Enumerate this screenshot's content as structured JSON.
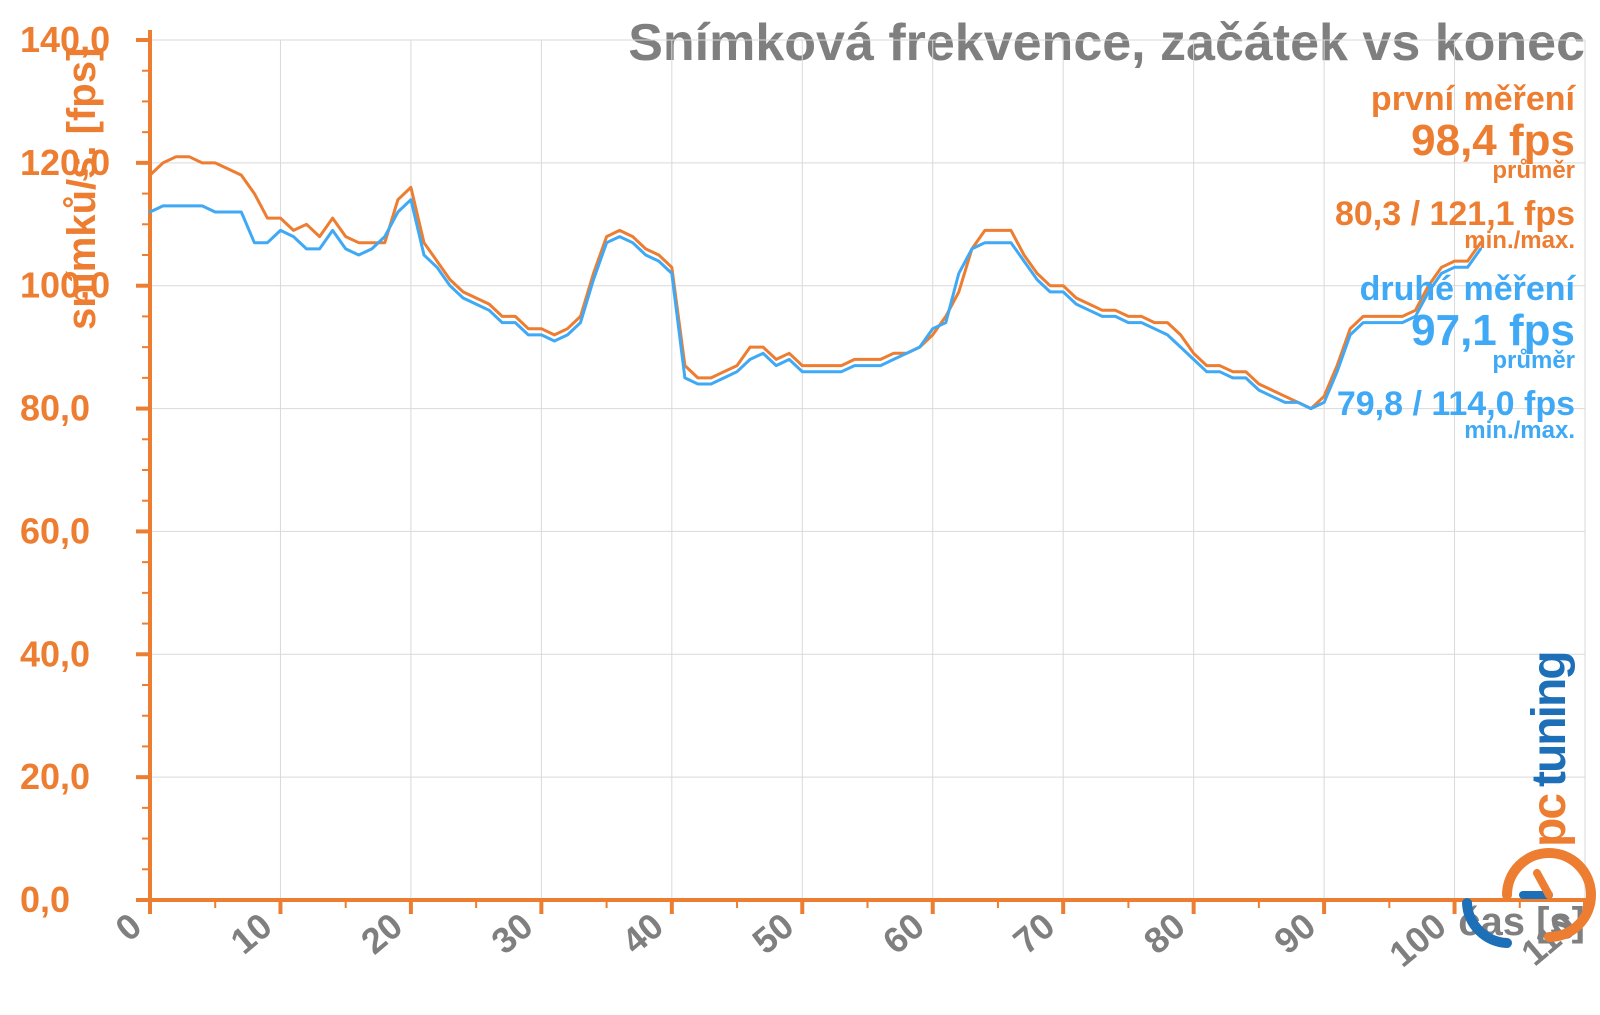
{
  "chart": {
    "type": "line",
    "title": "Snímková frekvence, začátek vs konec",
    "title_fontsize": 52,
    "title_color": "#7f7f7f",
    "background_color": "#ffffff",
    "plot_background_color": "#ffffff",
    "grid_color": "#d9d9d9",
    "grid_width": 1,
    "axis": {
      "x": {
        "label": "čas [s]",
        "label_color": "#7f7f7f",
        "label_fontsize": 40,
        "min": 0,
        "max": 110,
        "tick_step": 10,
        "ticks": [
          0,
          10,
          20,
          30,
          40,
          50,
          60,
          70,
          80,
          90,
          100,
          110
        ],
        "tick_fontsize": 36,
        "tick_color": "#7f7f7f",
        "tick_rotation": -40,
        "axis_line_color": "#ed7d31",
        "axis_line_width": 4,
        "minor_ticks": 1
      },
      "y": {
        "label": "snímků/s. [fps]",
        "label_color": "#ed7d31",
        "label_fontsize": 40,
        "min": 0,
        "max": 140,
        "tick_step": 20,
        "ticks": [
          "0,0",
          "20,0",
          "40,0",
          "60,0",
          "80,0",
          "100,0",
          "120,0",
          "140,0"
        ],
        "tick_values": [
          0,
          20,
          40,
          60,
          80,
          100,
          120,
          140
        ],
        "tick_fontsize": 36,
        "tick_color": "#ed7d31",
        "axis_line_color": "#ed7d31",
        "axis_line_width": 4,
        "minor_ticks": 3
      }
    },
    "series": [
      {
        "name": "první měření",
        "color": "#ed7d31",
        "line_width": 3,
        "x": [
          0,
          1,
          2,
          3,
          4,
          5,
          6,
          7,
          8,
          9,
          10,
          11,
          12,
          13,
          14,
          15,
          16,
          17,
          18,
          19,
          20,
          21,
          22,
          23,
          24,
          25,
          26,
          27,
          28,
          29,
          30,
          31,
          32,
          33,
          34,
          35,
          36,
          37,
          38,
          39,
          40,
          41,
          42,
          43,
          44,
          45,
          46,
          47,
          48,
          49,
          50,
          51,
          52,
          53,
          54,
          55,
          56,
          57,
          58,
          59,
          60,
          61,
          62,
          63,
          64,
          65,
          66,
          67,
          68,
          69,
          70,
          71,
          72,
          73,
          74,
          75,
          76,
          77,
          78,
          79,
          80,
          81,
          82,
          83,
          84,
          85,
          86,
          87,
          88,
          89,
          90,
          91,
          92,
          93,
          94,
          95,
          96,
          97,
          98,
          99,
          100,
          101,
          102
        ],
        "y": [
          118,
          120,
          121,
          121,
          120,
          120,
          119,
          118,
          115,
          111,
          111,
          109,
          110,
          108,
          111,
          108,
          107,
          107,
          107,
          114,
          116,
          107,
          104,
          101,
          99,
          98,
          97,
          95,
          95,
          93,
          93,
          92,
          93,
          95,
          102,
          108,
          109,
          108,
          106,
          105,
          103,
          87,
          85,
          85,
          86,
          87,
          90,
          90,
          88,
          89,
          87,
          87,
          87,
          87,
          88,
          88,
          88,
          89,
          89,
          90,
          92,
          95,
          99,
          106,
          109,
          109,
          109,
          105,
          102,
          100,
          100,
          98,
          97,
          96,
          96,
          95,
          95,
          94,
          94,
          92,
          89,
          87,
          87,
          86,
          86,
          84,
          83,
          82,
          81,
          80,
          82,
          87,
          93,
          95,
          95,
          95,
          95,
          96,
          100,
          103,
          104,
          104,
          107
        ]
      },
      {
        "name": "druhé měření",
        "color": "#3fa9f5",
        "line_width": 3,
        "x": [
          0,
          1,
          2,
          3,
          4,
          5,
          6,
          7,
          8,
          9,
          10,
          11,
          12,
          13,
          14,
          15,
          16,
          17,
          18,
          19,
          20,
          21,
          22,
          23,
          24,
          25,
          26,
          27,
          28,
          29,
          30,
          31,
          32,
          33,
          34,
          35,
          36,
          37,
          38,
          39,
          40,
          41,
          42,
          43,
          44,
          45,
          46,
          47,
          48,
          49,
          50,
          51,
          52,
          53,
          54,
          55,
          56,
          57,
          58,
          59,
          60,
          61,
          62,
          63,
          64,
          65,
          66,
          67,
          68,
          69,
          70,
          71,
          72,
          73,
          74,
          75,
          76,
          77,
          78,
          79,
          80,
          81,
          82,
          83,
          84,
          85,
          86,
          87,
          88,
          89,
          90,
          91,
          92,
          93,
          94,
          95,
          96,
          97,
          98,
          99,
          100,
          101,
          102
        ],
        "y": [
          112,
          113,
          113,
          113,
          113,
          112,
          112,
          112,
          107,
          107,
          109,
          108,
          106,
          106,
          109,
          106,
          105,
          106,
          108,
          112,
          114,
          105,
          103,
          100,
          98,
          97,
          96,
          94,
          94,
          92,
          92,
          91,
          92,
          94,
          101,
          107,
          108,
          107,
          105,
          104,
          102,
          85,
          84,
          84,
          85,
          86,
          88,
          89,
          87,
          88,
          86,
          86,
          86,
          86,
          87,
          87,
          87,
          88,
          89,
          90,
          93,
          94,
          102,
          106,
          107,
          107,
          107,
          104,
          101,
          99,
          99,
          97,
          96,
          95,
          95,
          94,
          94,
          93,
          92,
          90,
          88,
          86,
          86,
          85,
          85,
          83,
          82,
          81,
          81,
          80,
          81,
          86,
          92,
          94,
          94,
          94,
          94,
          95,
          99,
          102,
          103,
          103,
          106
        ]
      }
    ],
    "legend": {
      "series1": {
        "title": "první měření",
        "avg_value": "98,4 fps",
        "avg_label": "průměr",
        "minmax_value": "80,3 / 121,1 fps",
        "minmax_label": "min./max.",
        "color": "#ed7d31"
      },
      "series2": {
        "title": "druhé měření",
        "avg_value": "97,1 fps",
        "avg_label": "průměr",
        "minmax_value": "79,8 / 114,0 fps",
        "minmax_label": "min./max.",
        "color": "#3fa9f5"
      }
    },
    "watermark": {
      "text1": "pc",
      "text2": "tuning",
      "color1": "#ed7d31",
      "color2": "#1d70b7"
    }
  }
}
